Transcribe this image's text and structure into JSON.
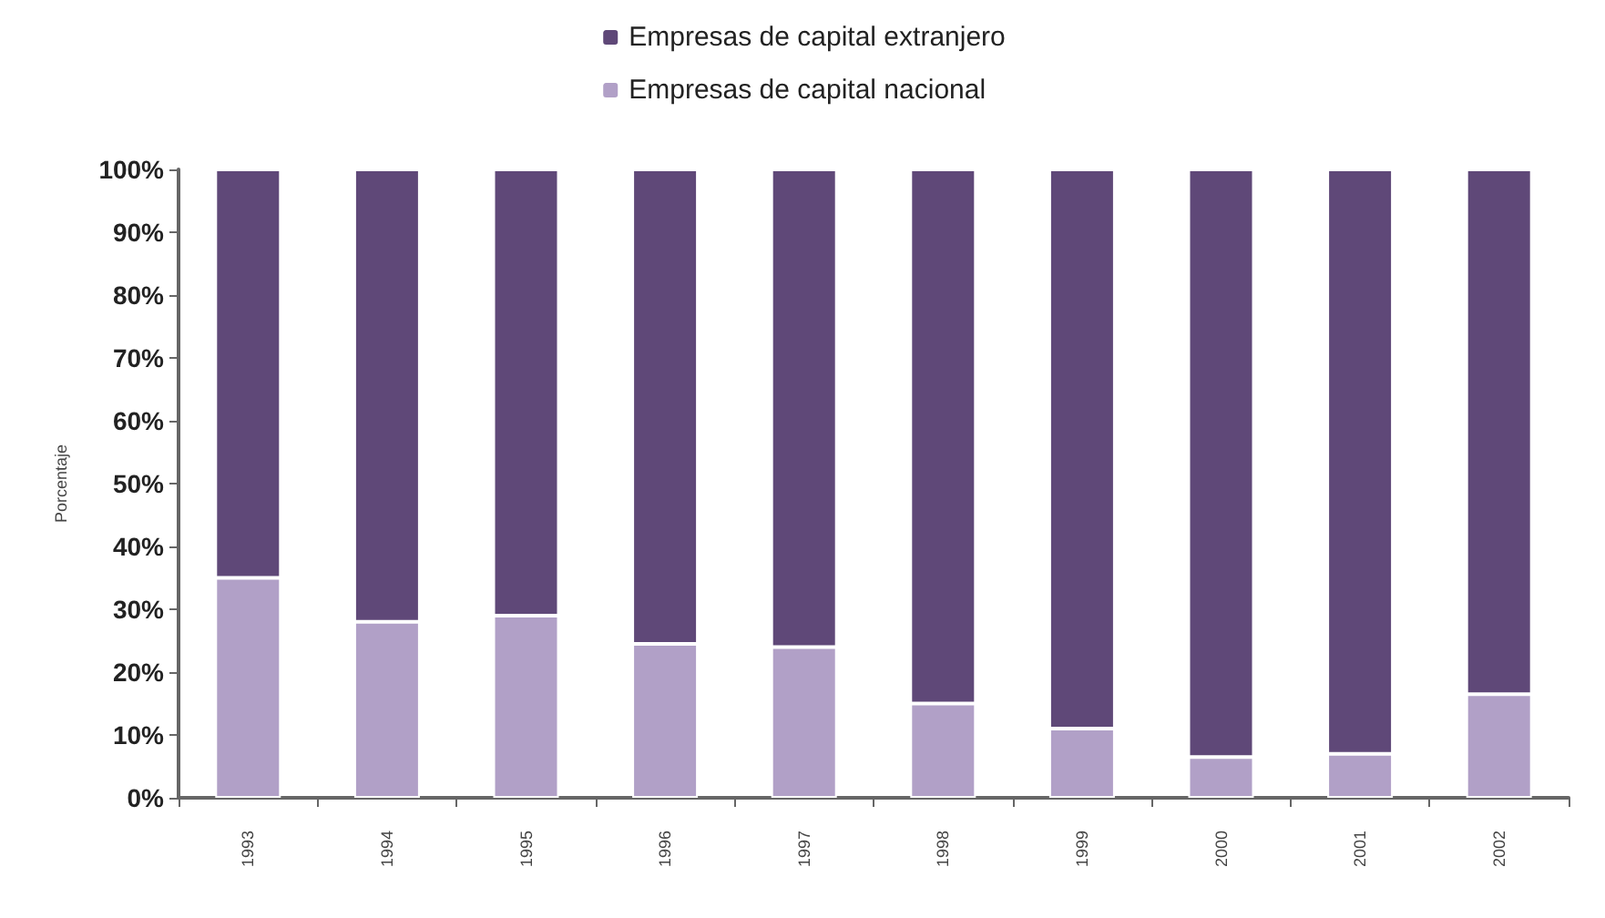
{
  "chart_data": {
    "type": "bar",
    "ylabel": "Porcentaje",
    "categories": [
      "1993",
      "1994",
      "1995",
      "1996",
      "1997",
      "1998",
      "1999",
      "2000",
      "2001",
      "2002"
    ],
    "series": [
      {
        "name": "Empresas de capital nacional",
        "color": "#b1a0c7",
        "values": [
          35,
          28,
          29,
          24.5,
          24,
          15,
          11,
          6.5,
          7,
          16.5
        ]
      },
      {
        "name": "Empresas de capital extranjero",
        "color": "#5f4878",
        "values": [
          65,
          72,
          71,
          75.5,
          76,
          85,
          89,
          93.5,
          93,
          83.5
        ]
      }
    ],
    "stacked": true,
    "ylim": [
      0,
      100
    ],
    "yticks": [
      {
        "value": 0,
        "label": "0%"
      },
      {
        "value": 10,
        "label": "10%"
      },
      {
        "value": 20,
        "label": "20%"
      },
      {
        "value": 30,
        "label": "30%"
      },
      {
        "value": 40,
        "label": "40%"
      },
      {
        "value": 50,
        "label": "50%"
      },
      {
        "value": 60,
        "label": "60%"
      },
      {
        "value": 70,
        "label": "70%"
      },
      {
        "value": 80,
        "label": "80%"
      },
      {
        "value": 90,
        "label": "90%"
      },
      {
        "value": 100,
        "label": "100%"
      }
    ],
    "grid": false,
    "legend": "top"
  }
}
